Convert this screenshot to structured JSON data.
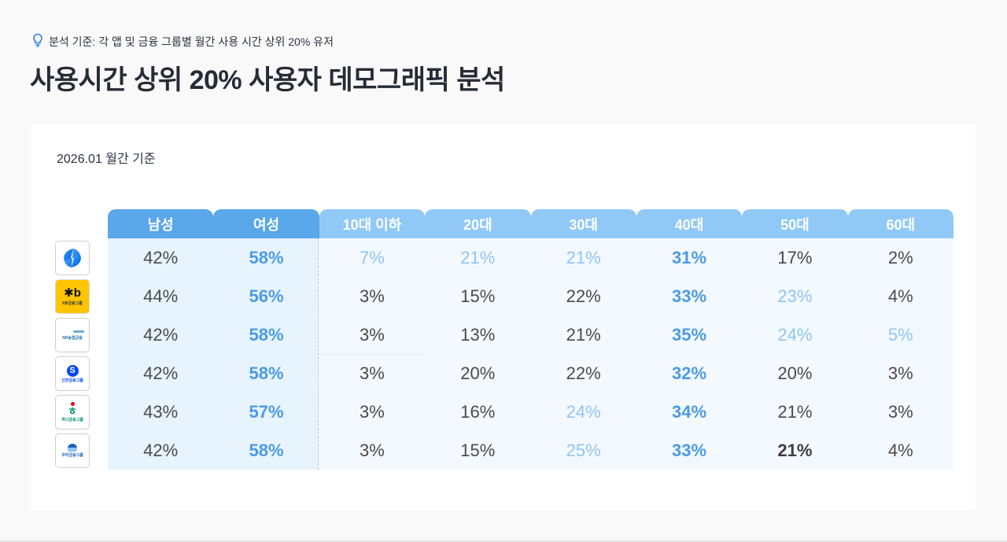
{
  "header": {
    "criteria_icon": "lightbulb-icon",
    "criteria": "분석 기준: 각 앱 및 금융 그룹별 월간 사용 시간 상위 20% 유저",
    "title": "사용시간 상위 20% 사용자 데모그래픽 분석"
  },
  "card": {
    "period": "2026.01 월간 기준"
  },
  "colors": {
    "gender_header": "#5aa7ea",
    "age_header": "#90c9f6",
    "gender_bg": "#e7f3fd",
    "age_bg": "#f3f9fe",
    "highlight_strong": "#4b9be3",
    "highlight_light": "#8ec5f3",
    "text": "#4a4a4a"
  },
  "table": {
    "columns": [
      "남성",
      "여성",
      "10대 이하",
      "20대",
      "30대",
      "40대",
      "50대",
      "60대"
    ],
    "rows": [
      {
        "logo": "toss-logo",
        "logo_text": "",
        "values": [
          "42%",
          "58%",
          "7%",
          "21%",
          "21%",
          "31%",
          "17%",
          "2%"
        ],
        "styles": [
          "",
          "strong",
          "light",
          "light",
          "light",
          "strong",
          "",
          ""
        ]
      },
      {
        "logo": "kb-financial-logo",
        "logo_text": "KB금융그룹",
        "values": [
          "44%",
          "56%",
          "3%",
          "15%",
          "22%",
          "33%",
          "23%",
          "4%"
        ],
        "styles": [
          "",
          "strong",
          "",
          "",
          "",
          "strong",
          "light",
          ""
        ]
      },
      {
        "logo": "nh-nonghyup-logo",
        "logo_text": "NH농협금융",
        "values": [
          "42%",
          "58%",
          "3%",
          "13%",
          "21%",
          "35%",
          "24%",
          "5%"
        ],
        "styles": [
          "",
          "strong",
          "",
          "",
          "",
          "strong",
          "light",
          "light"
        ]
      },
      {
        "logo": "shinhan-financial-logo",
        "logo_text": "신한금융그룹",
        "values": [
          "42%",
          "58%",
          "3%",
          "20%",
          "22%",
          "32%",
          "20%",
          "3%"
        ],
        "styles": [
          "",
          "strong",
          "",
          "",
          "",
          "strong",
          "",
          ""
        ]
      },
      {
        "logo": "hana-financial-logo",
        "logo_text": "하나금융그룹",
        "values": [
          "43%",
          "57%",
          "3%",
          "16%",
          "24%",
          "34%",
          "21%",
          "3%"
        ],
        "styles": [
          "",
          "strong",
          "",
          "",
          "light",
          "strong",
          "",
          ""
        ]
      },
      {
        "logo": "woori-financial-logo",
        "logo_text": "우리금융그룹",
        "values": [
          "42%",
          "58%",
          "3%",
          "15%",
          "25%",
          "33%",
          "21%",
          "4%"
        ],
        "styles": [
          "",
          "strong",
          "",
          "",
          "light",
          "strong",
          "dark",
          ""
        ]
      }
    ]
  },
  "chart_data": {
    "type": "table",
    "title": "사용시간 상위 20% 사용자 데모그래픽 분석",
    "subtitle": "2026.01 월간 기준",
    "note": "분석 기준: 각 앱 및 금융 그룹별 월간 사용 시간 상위 20% 유저",
    "categories": [
      "토스",
      "KB금융그룹",
      "NH농협금융",
      "신한금융그룹",
      "하나금융그룹",
      "우리금융그룹"
    ],
    "columns": [
      "남성",
      "여성",
      "10대 이하",
      "20대",
      "30대",
      "40대",
      "50대",
      "60대"
    ],
    "series": [
      {
        "name": "남성",
        "values": [
          42,
          44,
          42,
          42,
          43,
          42
        ]
      },
      {
        "name": "여성",
        "values": [
          58,
          56,
          58,
          58,
          57,
          58
        ]
      },
      {
        "name": "10대 이하",
        "values": [
          7,
          3,
          3,
          3,
          3,
          3
        ]
      },
      {
        "name": "20대",
        "values": [
          21,
          15,
          13,
          20,
          16,
          15
        ]
      },
      {
        "name": "30대",
        "values": [
          21,
          22,
          21,
          22,
          24,
          25
        ]
      },
      {
        "name": "40대",
        "values": [
          31,
          33,
          35,
          32,
          34,
          33
        ]
      },
      {
        "name": "50대",
        "values": [
          17,
          23,
          24,
          20,
          21,
          21
        ]
      },
      {
        "name": "60대",
        "values": [
          2,
          4,
          5,
          3,
          3,
          4
        ]
      }
    ],
    "unit": "%"
  }
}
